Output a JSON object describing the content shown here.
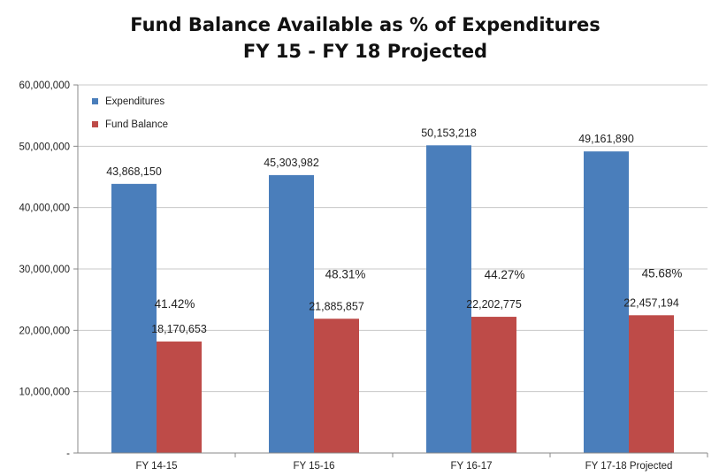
{
  "chart_data": {
    "type": "bar",
    "title_line1": "Fund Balance Available as % of Expenditures",
    "title_line2": "FY 15 - FY 18 Projected",
    "categories": [
      "FY 14-15",
      "FY 15-16",
      "FY 16-17",
      "FY 17-18 Projected"
    ],
    "series": [
      {
        "name": "Expenditures",
        "color": "#4a7ebb",
        "values": [
          43868150,
          45303982,
          50153218,
          49161890
        ],
        "labels": [
          "43,868,150",
          "45,303,982",
          "50,153,218",
          "49,161,890"
        ]
      },
      {
        "name": "Fund Balance",
        "color": "#be4b48",
        "values": [
          18170653,
          21885857,
          22202775,
          22457194
        ],
        "labels": [
          "18,170,653",
          "21,885,857",
          "22,202,775",
          "22,457,194"
        ]
      }
    ],
    "percent_labels": [
      "41.42%",
      "48.31%",
      "44.27%",
      "45.68%"
    ],
    "ylim": [
      0,
      60000000
    ],
    "ytick_values": [
      0,
      10000000,
      20000000,
      30000000,
      40000000,
      50000000,
      60000000
    ],
    "ytick_labels": [
      "-",
      "10,000,000",
      "20,000,000",
      "30,000,000",
      "40,000,000",
      "50,000,000",
      "60,000,000"
    ],
    "grid": true,
    "legend_position": "top-left",
    "xlabel": "",
    "ylabel": ""
  }
}
